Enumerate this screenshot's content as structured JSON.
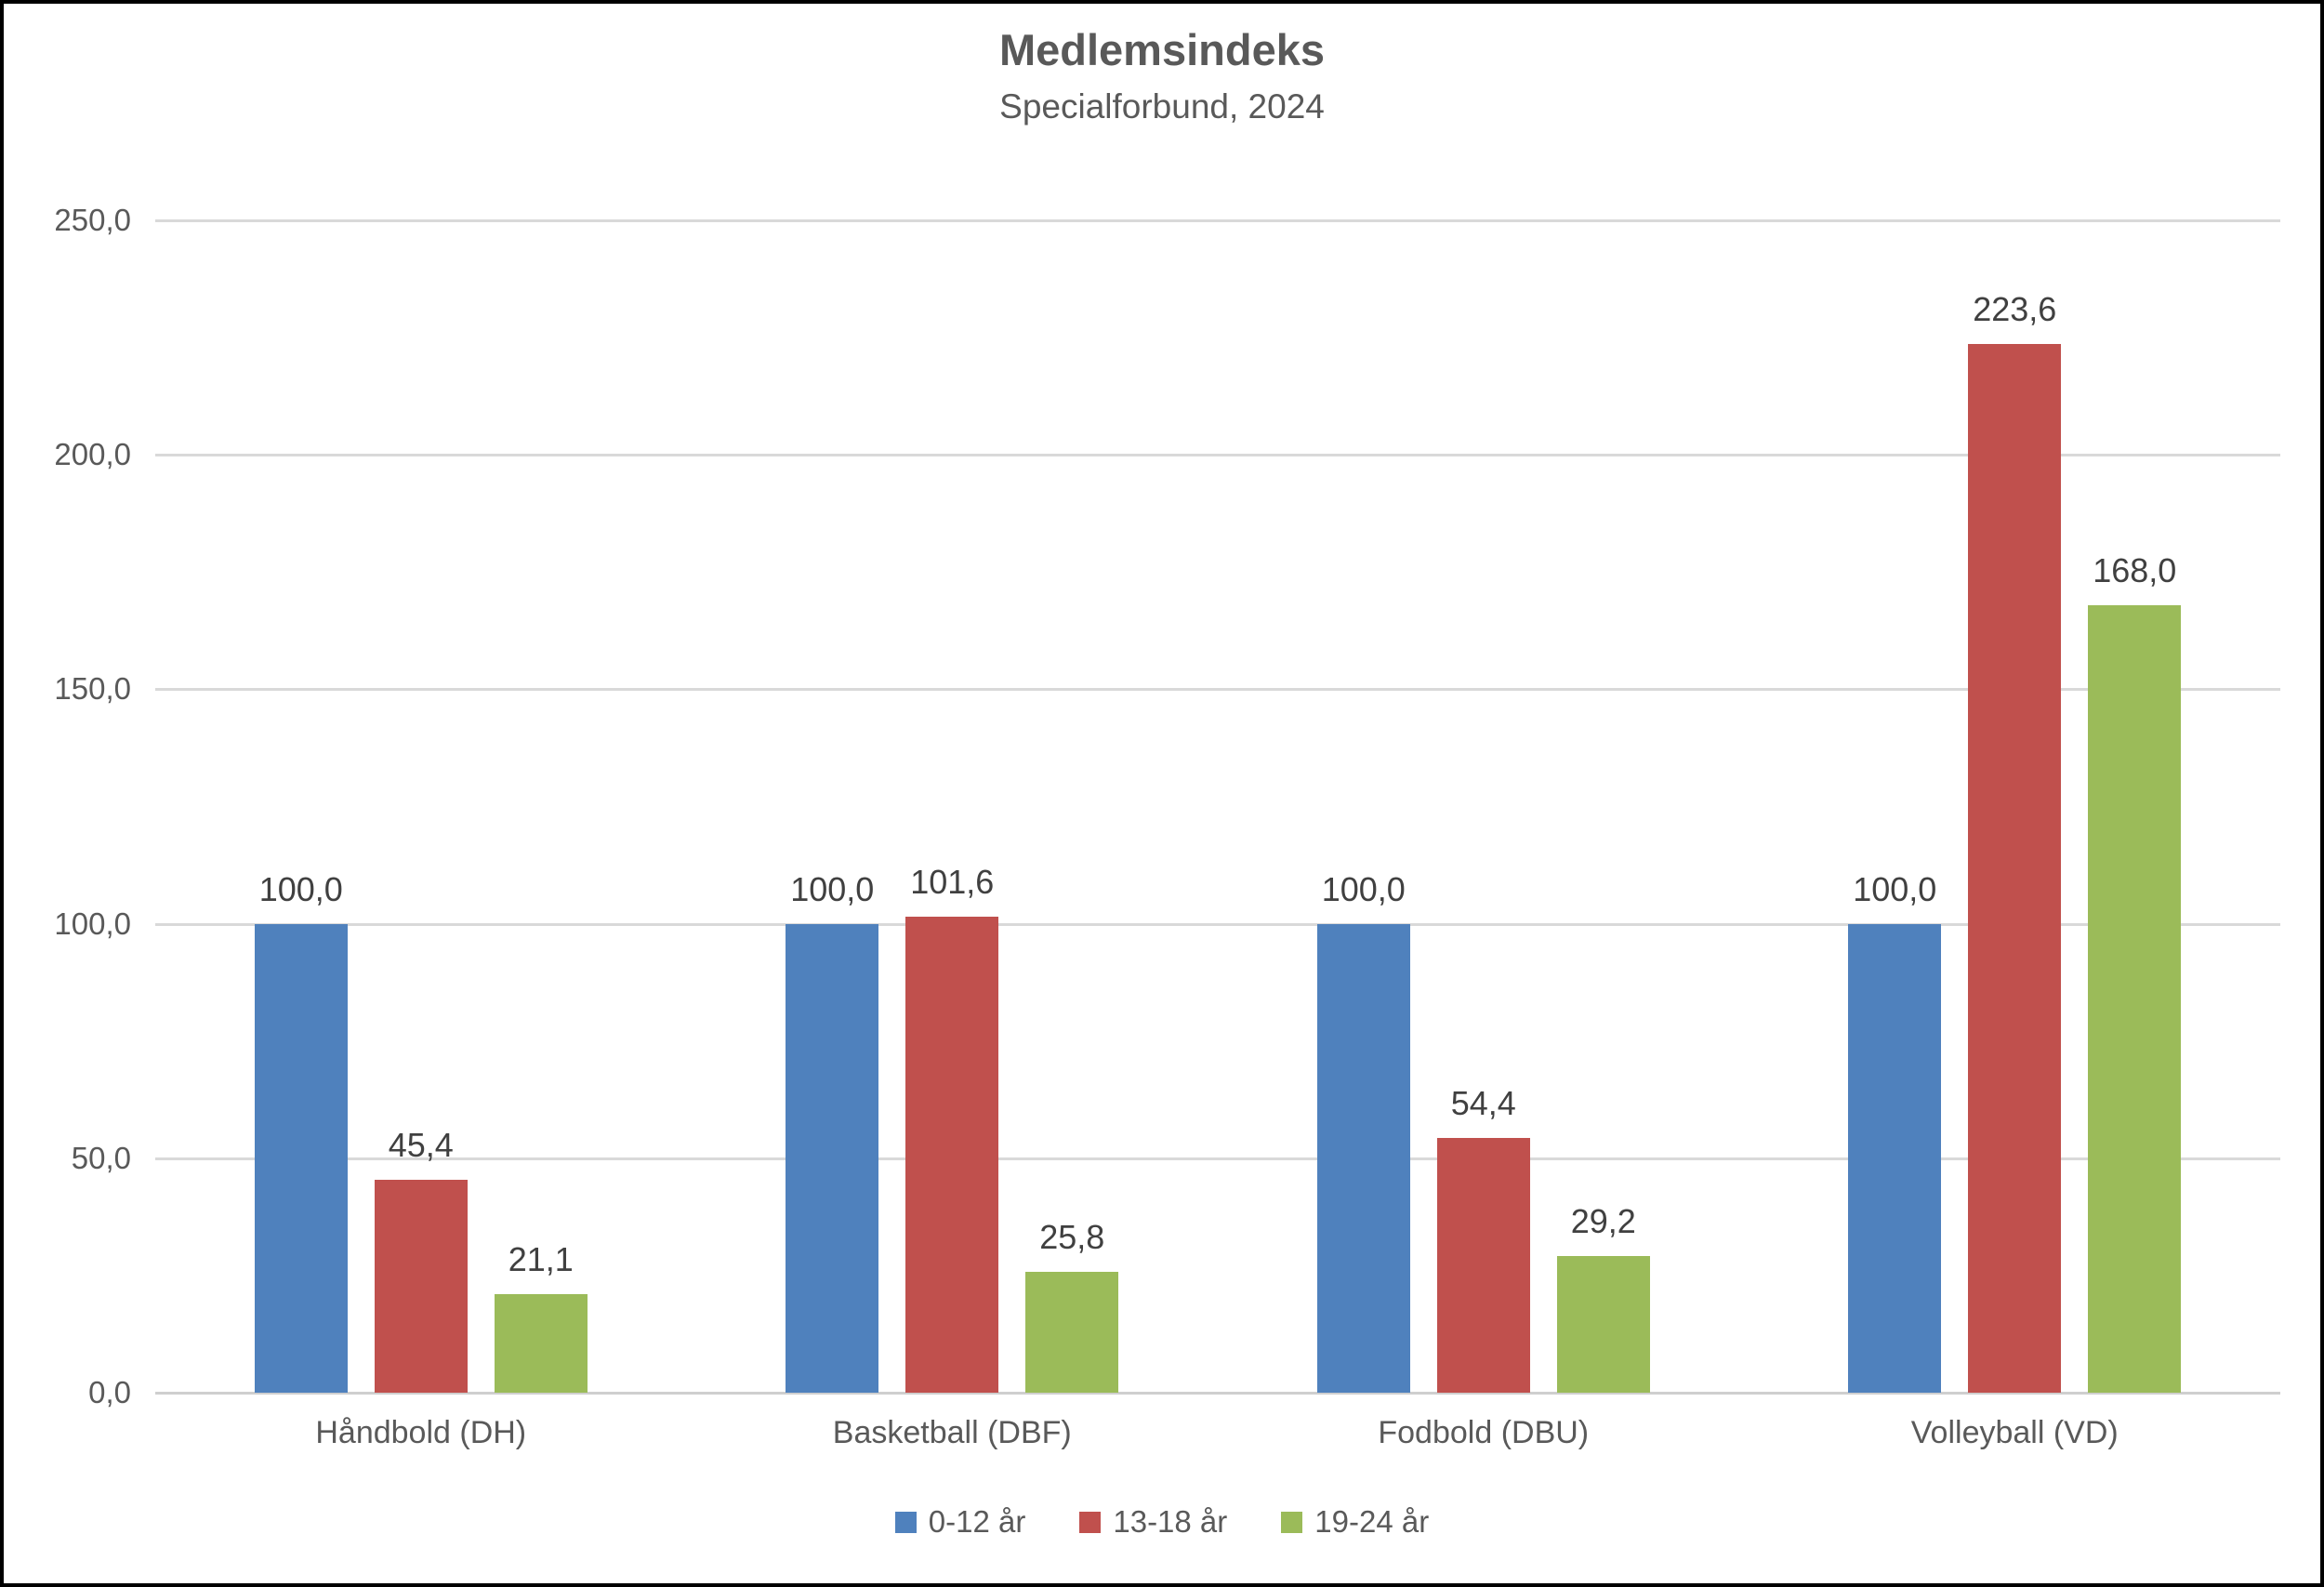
{
  "title": "Medlemsindeks",
  "subtitle": "Specialforbund, 2024",
  "colors": {
    "series_blue": "#4f81bd",
    "series_red": "#c0504d",
    "series_green": "#9bbb59",
    "gridline": "#d9d9d9",
    "axis_text": "#595959",
    "value_text": "#404040",
    "frame_border": "#000000",
    "background": "#ffffff"
  },
  "chart_data": {
    "type": "bar",
    "title": "Medlemsindeks",
    "subtitle": "Specialforbund, 2024",
    "categories": [
      "Håndbold (DH)",
      "Basketball (DBF)",
      "Fodbold (DBU)",
      "Volleyball (VD)"
    ],
    "series": [
      {
        "name": "0-12 år",
        "color": "#4f81bd",
        "values": [
          100.0,
          100.0,
          100.0,
          100.0
        ],
        "labels": [
          "100,0",
          "100,0",
          "100,0",
          "100,0"
        ]
      },
      {
        "name": "13-18 år",
        "color": "#c0504d",
        "values": [
          45.4,
          101.6,
          54.4,
          223.6
        ],
        "labels": [
          "45,4",
          "101,6",
          "54,4",
          "223,6"
        ]
      },
      {
        "name": "19-24 år",
        "color": "#9bbb59",
        "values": [
          21.1,
          25.8,
          29.2,
          168.0
        ],
        "labels": [
          "21,1",
          "25,8",
          "29,2",
          "168,0"
        ]
      }
    ],
    "ylim": [
      0,
      250
    ],
    "ytick_step": 50,
    "ytick_labels": [
      "250,0",
      "200,0",
      "150,0",
      "100,0",
      "50,0",
      "0,0"
    ],
    "grid": true,
    "legend_position": "bottom",
    "data_labels": true
  }
}
